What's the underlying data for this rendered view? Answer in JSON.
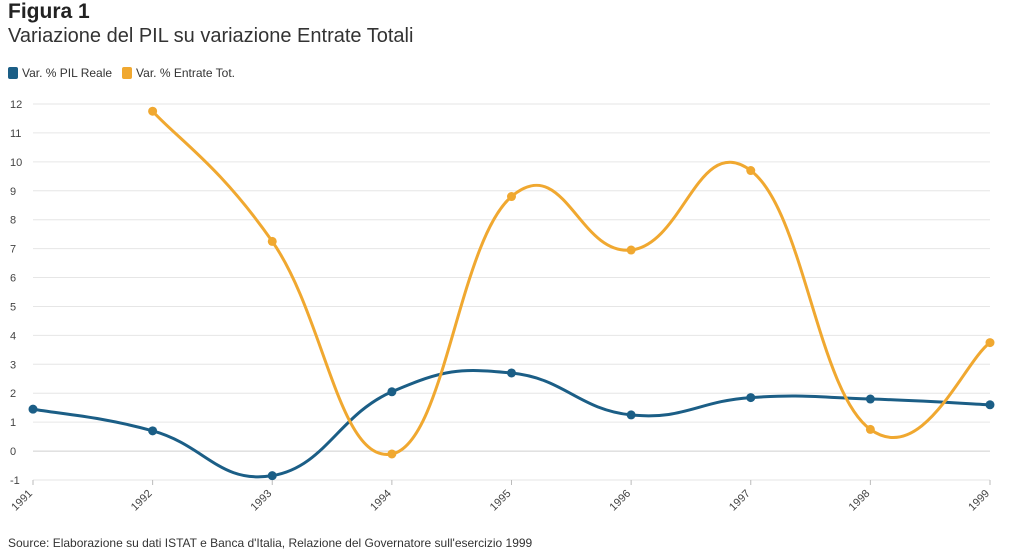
{
  "header": {
    "kicker": "Figura 1",
    "title": "Variazione del PIL su variazione Entrate Totali"
  },
  "source": "Source: Elaborazione su dati ISTAT e Banca d'Italia, Relazione del Governatore sull'esercizio 1999",
  "chart_data": {
    "type": "line",
    "title": "Variazione del PIL su variazione Entrate Totali",
    "x": [
      "1991",
      "1992",
      "1993",
      "1994",
      "1995",
      "1996",
      "1997",
      "1998",
      "1999"
    ],
    "ylim": [
      -1,
      12
    ],
    "yticks": [
      "-1",
      "0",
      "1",
      "2",
      "3",
      "4",
      "5",
      "6",
      "7",
      "8",
      "9",
      "10",
      "11",
      "12"
    ],
    "grid": true,
    "legend": "top-left",
    "series": [
      {
        "name": "Var. % PIL Reale",
        "color": "#1b5e86",
        "values": [
          1.45,
          0.7,
          -0.85,
          2.05,
          2.7,
          1.25,
          1.85,
          1.8,
          1.6
        ]
      },
      {
        "name": "Var. % Entrate Tot.",
        "color": "#f0a830",
        "values": [
          null,
          11.75,
          7.25,
          -0.1,
          8.8,
          6.95,
          9.7,
          0.75,
          3.75
        ]
      }
    ]
  }
}
